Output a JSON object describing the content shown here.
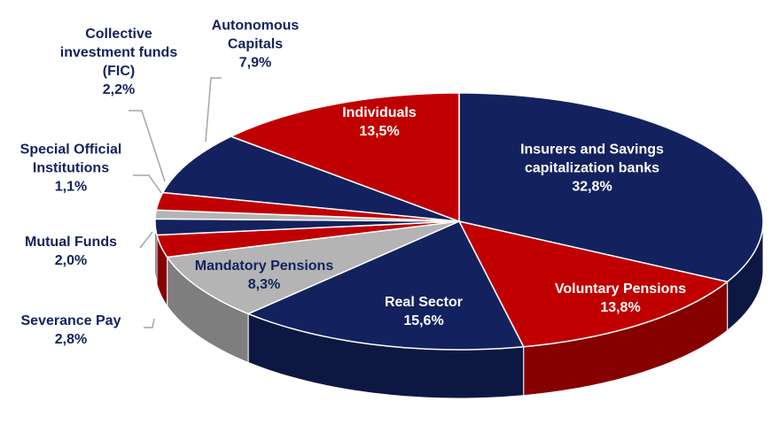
{
  "chart_data": {
    "type": "pie",
    "categories": [
      "Insurers and Savings capitalization banks",
      "Voluntary Pensions",
      "Real Sector",
      "Mandatory Pensions",
      "Severance Pay",
      "Mutual Funds",
      "Special Official Institutions",
      "Collective investment funds (FIC)",
      "Autonomous Capitals",
      "Individuals"
    ],
    "values": [
      32.8,
      13.8,
      15.6,
      8.3,
      2.8,
      2.0,
      1.1,
      2.2,
      7.9,
      13.5
    ],
    "value_labels": [
      "32,8%",
      "13,8%",
      "15,6%",
      "8,3%",
      "2,8%",
      "2,0%",
      "1,1%",
      "2,2%",
      "7,9%",
      "13,5%"
    ],
    "colors": [
      "#13225e",
      "#c00000",
      "#13225e",
      "#b4b4b4",
      "#c00000",
      "#13225e",
      "#b4b4b4",
      "#c00000",
      "#13225e",
      "#c00000"
    ]
  }
}
